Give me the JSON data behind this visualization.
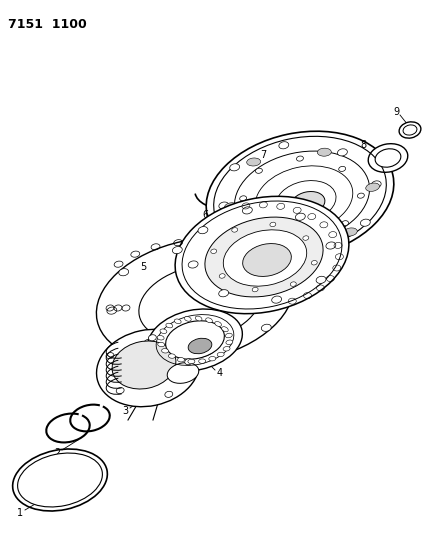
{
  "title": "7151  1100",
  "bg_color": "#ffffff",
  "line_color": "#000000",
  "fig_width": 4.29,
  "fig_height": 5.33,
  "dpi": 100
}
